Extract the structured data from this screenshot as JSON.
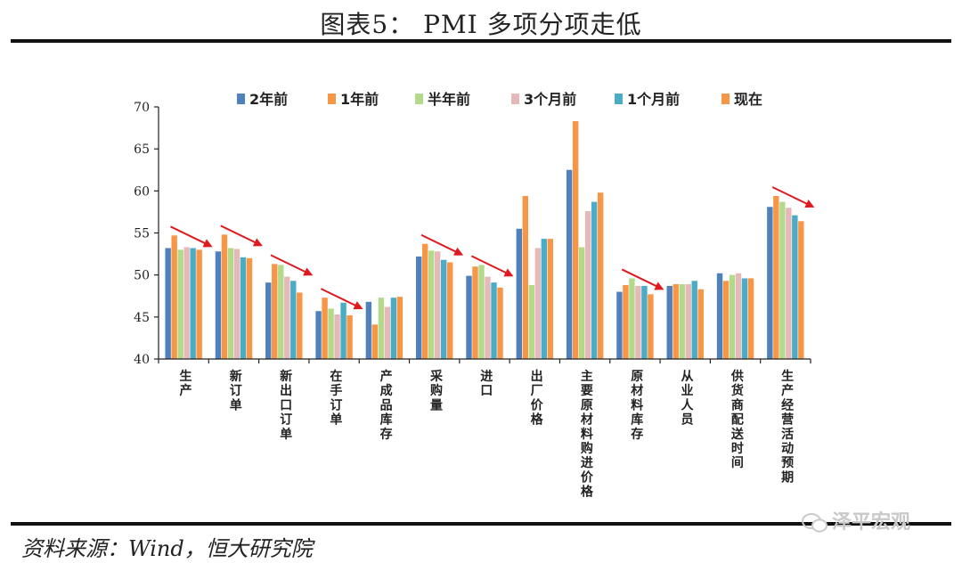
{
  "title": "图表5： PMI 多项分项走低",
  "source": "资料来源：Wind，恒大研究院",
  "watermark": "泽平宏观",
  "colors": {
    "arrow": "#e0191e",
    "axis": "#222222"
  },
  "chart_data": {
    "type": "bar",
    "ylim": [
      40,
      70
    ],
    "yticks": [
      40,
      45,
      50,
      55,
      60,
      65,
      70
    ],
    "legend_position": "top",
    "categories": [
      "生产",
      "新订单",
      "新出口订单",
      "在手订单",
      "产成品库存",
      "采购量",
      "进口",
      "出厂价格",
      "主要原材料购进价格",
      "原材料库存",
      "从业人员",
      "供货商配送时间",
      "生产经营活动预期"
    ],
    "series": [
      {
        "name": "2年前",
        "color": "#4f81bd",
        "values": [
          53.2,
          52.8,
          49.1,
          45.7,
          46.8,
          52.2,
          49.9,
          55.5,
          62.5,
          48.0,
          48.7,
          50.2,
          58.1
        ]
      },
      {
        "name": "1年前",
        "color": "#f79646",
        "values": [
          54.7,
          54.8,
          51.3,
          47.3,
          44.1,
          53.7,
          51.0,
          59.4,
          68.3,
          48.8,
          48.9,
          49.3,
          59.4
        ]
      },
      {
        "name": "半年前",
        "color": "#b3d98b",
        "values": [
          53.0,
          53.2,
          51.2,
          46.0,
          47.3,
          52.9,
          51.2,
          48.8,
          53.3,
          49.6,
          48.9,
          50.0,
          58.7
        ]
      },
      {
        "name": "3个月前",
        "color": "#e6b9b8",
        "values": [
          53.3,
          53.1,
          49.8,
          45.3,
          46.2,
          52.8,
          49.8,
          53.2,
          57.6,
          48.7,
          48.9,
          50.2,
          58.0
        ]
      },
      {
        "name": "1个月前",
        "color": "#4bacc6",
        "values": [
          53.2,
          52.1,
          49.3,
          46.7,
          47.3,
          51.8,
          49.1,
          54.3,
          58.7,
          48.7,
          49.3,
          49.6,
          57.1
        ]
      },
      {
        "name": "现在",
        "color": "#f79646",
        "values": [
          53.0,
          52.0,
          47.9,
          45.2,
          47.4,
          51.5,
          48.5,
          54.3,
          59.8,
          47.7,
          48.3,
          49.6,
          56.4
        ]
      }
    ],
    "trend_arrows": [
      "生产",
      "新订单",
      "新出口订单",
      "在手订单",
      "采购量",
      "进口",
      "原材料库存",
      "生产经营活动预期"
    ]
  }
}
